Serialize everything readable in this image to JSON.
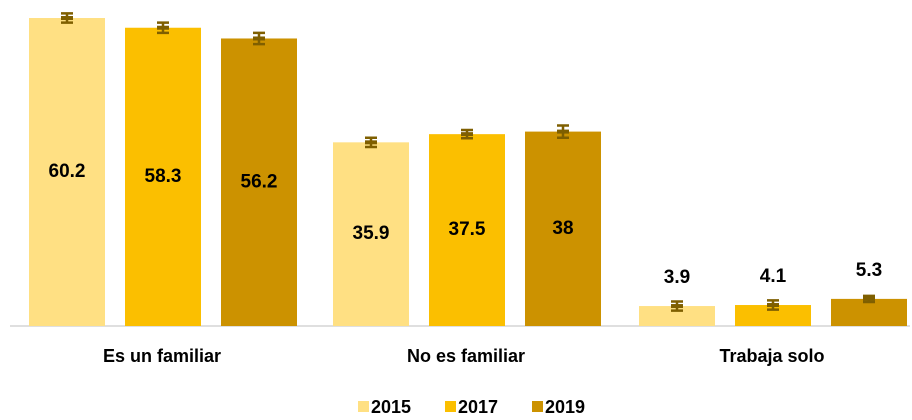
{
  "chart_data": {
    "type": "bar",
    "categories": [
      "Es un familiar",
      "No es familiar",
      "Trabaja solo"
    ],
    "series": [
      {
        "name": "2015",
        "color": "#FFE083",
        "values": [
          60.2,
          35.9,
          3.9
        ],
        "errors": [
          0.9,
          0.9,
          0.9
        ]
      },
      {
        "name": "2017",
        "color": "#FBBF00",
        "values": [
          58.3,
          37.5,
          4.1
        ],
        "errors": [
          1.0,
          0.8,
          0.9
        ]
      },
      {
        "name": "2019",
        "color": "#CC9200",
        "values": [
          56.2,
          38.0,
          5.3
        ],
        "errors": [
          1.1,
          1.2,
          0.6
        ]
      }
    ],
    "error_color": "#7F5F00",
    "legend": "bottom"
  }
}
